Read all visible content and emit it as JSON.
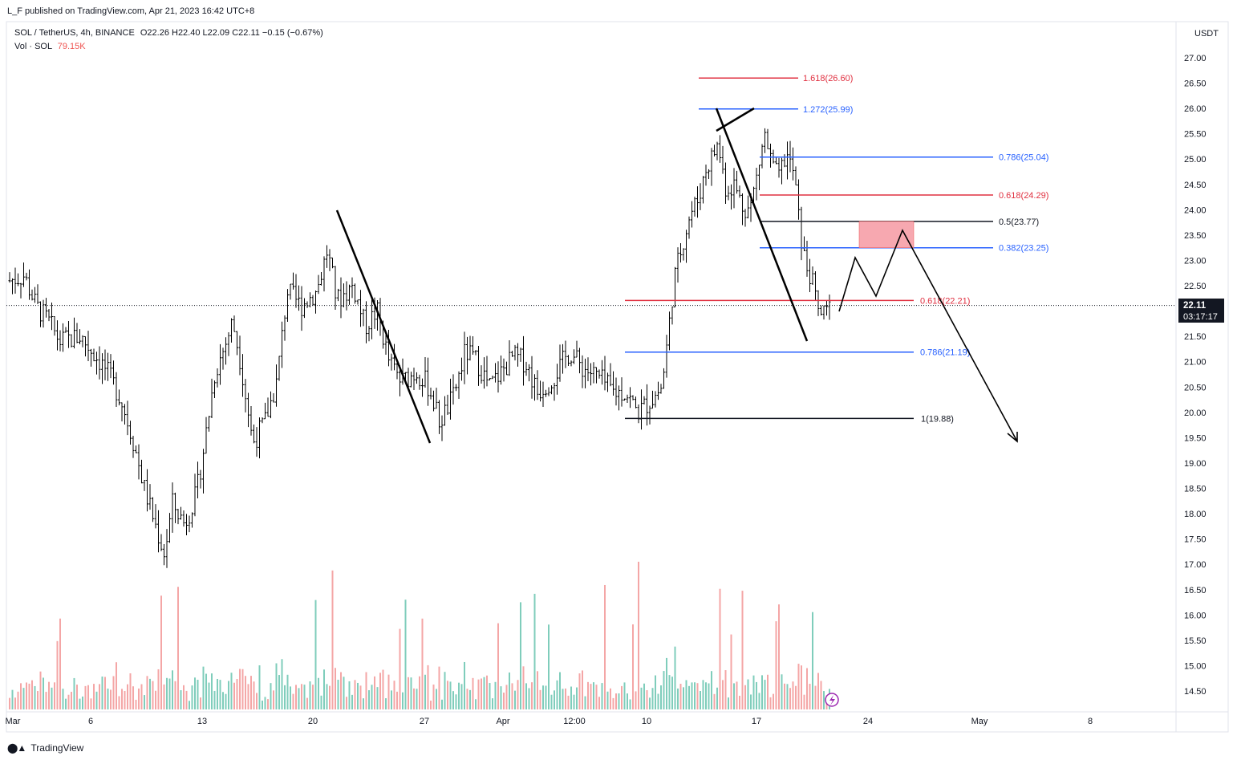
{
  "header": {
    "published": "L_F published on TradingView.com, Apr 21, 2023 16:42 UTC+8",
    "symbol_line": "SOL / TetherUS, 4h, BINANCE",
    "ohlc": "O22.26  H22.40  L22.09  C22.11  −0.15 (−0.67%)",
    "vol_label": "Vol · SOL",
    "vol_value": "79.15K"
  },
  "footer": {
    "brand": "TradingView",
    "logo": "tradingview-logo"
  },
  "price_axis": {
    "unit": "USDT",
    "ticks": [
      "27.00",
      "26.50",
      "26.00",
      "25.50",
      "25.00",
      "24.50",
      "24.00",
      "23.50",
      "23.00",
      "22.50",
      "22.00",
      "21.50",
      "21.00",
      "20.50",
      "20.00",
      "19.50",
      "19.00",
      "18.50",
      "18.00",
      "17.50",
      "17.00",
      "16.50",
      "16.00",
      "15.50",
      "15.00",
      "14.50"
    ],
    "current_price": "22.11",
    "countdown": "03:17:17"
  },
  "time_axis": {
    "ticks": [
      "Mar",
      "6",
      "13",
      "20",
      "27",
      "Apr",
      "12:00",
      "10",
      "17",
      "24",
      "May",
      "8"
    ]
  },
  "chart_data": {
    "type": "candlestick",
    "symbol": "SOL / TetherUS",
    "interval": "4h",
    "exchange": "BINANCE",
    "last_close": 22.11,
    "y_range": [
      14.3,
      27.2
    ],
    "fib_levels_upper": [
      {
        "label": "1.618(26.60)",
        "value": 26.6,
        "color": "#e03040"
      },
      {
        "label": "1.272(25.99)",
        "value": 25.99,
        "color": "#2962ff"
      },
      {
        "label": "0.786(25.04)",
        "value": 25.04,
        "color": "#2962ff"
      },
      {
        "label": "0.618(24.29)",
        "value": 24.29,
        "color": "#e03040"
      },
      {
        "label": "0.5(23.77)",
        "value": 23.77,
        "color": "#131722"
      },
      {
        "label": "0.382(23.25)",
        "value": 23.25,
        "color": "#2962ff"
      }
    ],
    "fib_levels_lower": [
      {
        "label": "0.618(22.21)",
        "value": 22.21,
        "color": "#e03040"
      },
      {
        "label": "0.786(21.19)",
        "value": 21.19,
        "color": "#2962ff"
      },
      {
        "label": "1(19.88)",
        "value": 19.88,
        "color": "#131722"
      }
    ],
    "supply_zone": {
      "low": 23.25,
      "high": 23.77,
      "color": "#f7a8b0"
    },
    "volume_colors": {
      "up": "#7fcdbb",
      "down": "#f4a6a6"
    },
    "annotation_marker": "lightning-icon"
  }
}
